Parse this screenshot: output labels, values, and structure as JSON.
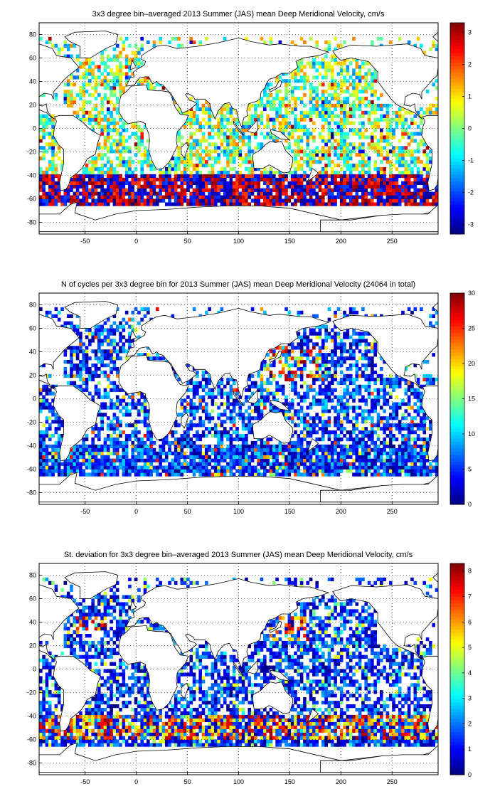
{
  "chart_data": [
    {
      "type": "heatmap",
      "title": "3x3 degree bin–averaged 2013 Summer (JAS) mean Deep Meridional Velocity, cm/s",
      "xlabel": "",
      "ylabel": "",
      "xlim": [
        -95,
        295
      ],
      "ylim": [
        -90,
        90
      ],
      "xticks": [
        "-50",
        "0",
        "50",
        "100",
        "150",
        "200",
        "250"
      ],
      "yticks": [
        "80",
        "60",
        "40",
        "20",
        "0",
        "-20",
        "-40",
        "-60",
        "-80"
      ],
      "colorbar": {
        "ticks": [
          "3",
          "2",
          "1",
          "0",
          "-1",
          "-2",
          "-3"
        ],
        "min": -3.3,
        "max": 3.3
      },
      "colormap": "jet",
      "grid": true
    },
    {
      "type": "heatmap",
      "title": "N of cycles per 3x3 degree bin for 2013 Summer (JAS) mean Deep Meridional Velocity (24064 in total)",
      "xlabel": "",
      "ylabel": "",
      "xlim": [
        -95,
        295
      ],
      "ylim": [
        -90,
        90
      ],
      "xticks": [
        "-50",
        "0",
        "50",
        "100",
        "150",
        "200",
        "250"
      ],
      "yticks": [
        "80",
        "60",
        "40",
        "20",
        "0",
        "-20",
        "-40",
        "-60",
        "-80"
      ],
      "colorbar": {
        "ticks": [
          "30",
          "25",
          "20",
          "15",
          "10",
          "5",
          "0"
        ],
        "min": 0,
        "max": 30
      },
      "colormap": "jet",
      "grid": true
    },
    {
      "type": "heatmap",
      "title": "St. deviation for 3x3 degree bin–averaged 2013 Summer (JAS) mean Deep Meridional Velocity, cm/s",
      "xlabel": "",
      "ylabel": "",
      "xlim": [
        -95,
        295
      ],
      "ylim": [
        -90,
        90
      ],
      "xticks": [
        "-50",
        "0",
        "50",
        "100",
        "150",
        "200",
        "250"
      ],
      "yticks": [
        "80",
        "60",
        "40",
        "20",
        "0",
        "-20",
        "-40",
        "-60",
        "-80"
      ],
      "colorbar": {
        "ticks": [
          "8",
          "7",
          "6",
          "5",
          "4",
          "3",
          "2",
          "1",
          "0"
        ],
        "min": 0,
        "max": 8.3
      },
      "colormap": "jet",
      "grid": true
    }
  ]
}
